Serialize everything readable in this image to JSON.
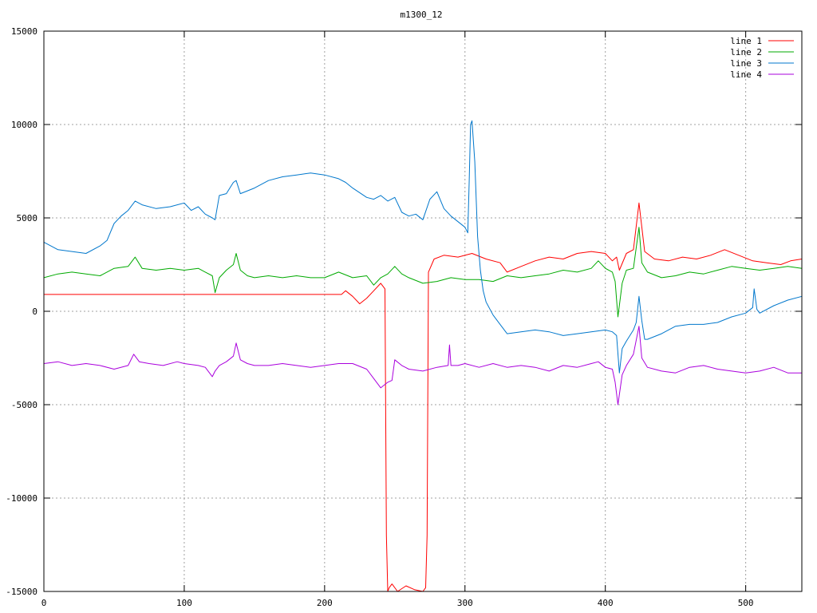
{
  "chart_data": {
    "type": "line",
    "title": "m1300_12",
    "xlim": [
      0,
      540
    ],
    "ylim": [
      -15000,
      15000
    ],
    "x_ticks": [
      0,
      100,
      200,
      300,
      400,
      500
    ],
    "y_ticks": [
      -15000,
      -10000,
      -5000,
      0,
      5000,
      10000,
      15000
    ],
    "grid": true,
    "legend_position": "top-right",
    "series": [
      {
        "name": "line 1",
        "color": "#ff0000",
        "x": [
          0,
          50,
          100,
          150,
          200,
          212,
          215,
          220,
          225,
          230,
          235,
          240,
          243,
          244,
          245,
          246,
          248,
          252,
          258,
          264,
          270,
          272,
          273,
          274,
          278,
          285,
          295,
          305,
          315,
          325,
          330,
          340,
          350,
          360,
          370,
          380,
          390,
          400,
          405,
          408,
          410,
          415,
          420,
          424,
          428,
          435,
          445,
          455,
          465,
          475,
          485,
          495,
          505,
          515,
          525,
          532,
          540
        ],
        "y": [
          900,
          900,
          900,
          900,
          900,
          900,
          1100,
          800,
          400,
          700,
          1100,
          1500,
          1200,
          -12000,
          -15000,
          -14800,
          -14600,
          -15000,
          -14700,
          -14900,
          -15000,
          -14800,
          -12000,
          2100,
          2800,
          3000,
          2900,
          3100,
          2800,
          2600,
          2100,
          2400,
          2700,
          2900,
          2800,
          3100,
          3200,
          3100,
          2700,
          2900,
          2200,
          3100,
          3300,
          5800,
          3200,
          2800,
          2700,
          2900,
          2800,
          3000,
          3300,
          3000,
          2700,
          2600,
          2500,
          2700,
          2800
        ]
      },
      {
        "name": "line 2",
        "color": "#00aa00",
        "x": [
          0,
          10,
          20,
          30,
          40,
          50,
          60,
          65,
          70,
          80,
          90,
          100,
          110,
          115,
          120,
          122,
          125,
          130,
          135,
          137,
          140,
          145,
          150,
          160,
          170,
          180,
          190,
          200,
          210,
          220,
          230,
          235,
          240,
          245,
          250,
          255,
          260,
          270,
          280,
          290,
          300,
          310,
          320,
          330,
          340,
          350,
          360,
          370,
          380,
          390,
          395,
          400,
          405,
          407,
          409,
          412,
          415,
          420,
          424,
          426,
          430,
          440,
          450,
          460,
          470,
          480,
          490,
          500,
          510,
          520,
          530,
          540
        ],
        "y": [
          1800,
          2000,
          2100,
          2000,
          1900,
          2300,
          2400,
          2900,
          2300,
          2200,
          2300,
          2200,
          2300,
          2100,
          1900,
          1000,
          1800,
          2200,
          2500,
          3100,
          2200,
          1900,
          1800,
          1900,
          1800,
          1900,
          1800,
          1800,
          2100,
          1800,
          1900,
          1400,
          1800,
          2000,
          2400,
          2000,
          1800,
          1500,
          1600,
          1800,
          1700,
          1700,
          1600,
          1900,
          1800,
          1900,
          2000,
          2200,
          2100,
          2300,
          2700,
          2300,
          2100,
          1600,
          -300,
          1500,
          2200,
          2300,
          4500,
          2600,
          2100,
          1800,
          1900,
          2100,
          2000,
          2200,
          2400,
          2300,
          2200,
          2300,
          2400,
          2300
        ]
      },
      {
        "name": "line 3",
        "color": "#0077cc",
        "x": [
          0,
          10,
          20,
          30,
          40,
          45,
          50,
          55,
          60,
          65,
          70,
          80,
          90,
          100,
          105,
          110,
          115,
          120,
          122,
          125,
          130,
          135,
          137,
          140,
          150,
          160,
          170,
          180,
          190,
          200,
          210,
          215,
          220,
          230,
          235,
          240,
          245,
          250,
          255,
          260,
          265,
          270,
          275,
          280,
          285,
          290,
          295,
          300,
          302,
          303,
          304,
          305,
          307,
          309,
          311,
          313,
          315,
          320,
          325,
          330,
          340,
          350,
          360,
          370,
          380,
          390,
          400,
          405,
          408,
          410,
          412,
          415,
          420,
          422,
          424,
          426,
          428,
          430,
          440,
          450,
          460,
          470,
          480,
          490,
          500,
          505,
          506,
          508,
          510,
          520,
          530,
          540
        ],
        "y": [
          3700,
          3300,
          3200,
          3100,
          3500,
          3800,
          4700,
          5100,
          5400,
          5900,
          5700,
          5500,
          5600,
          5800,
          5400,
          5600,
          5200,
          5000,
          4900,
          6200,
          6300,
          6900,
          7000,
          6300,
          6600,
          7000,
          7200,
          7300,
          7400,
          7300,
          7100,
          6900,
          6600,
          6100,
          6000,
          6200,
          5900,
          6100,
          5300,
          5100,
          5200,
          4900,
          6000,
          6400,
          5500,
          5100,
          4800,
          4500,
          4200,
          7000,
          10000,
          10200,
          8000,
          4000,
          2200,
          1100,
          500,
          -200,
          -700,
          -1200,
          -1100,
          -1000,
          -1100,
          -1300,
          -1200,
          -1100,
          -1000,
          -1100,
          -1300,
          -3300,
          -2000,
          -1600,
          -1000,
          -600,
          800,
          -500,
          -1500,
          -1500,
          -1200,
          -800,
          -700,
          -700,
          -600,
          -300,
          -100,
          200,
          1200,
          100,
          -100,
          300,
          600,
          800
        ]
      },
      {
        "name": "line 4",
        "color": "#aa00dd",
        "x": [
          0,
          10,
          20,
          30,
          40,
          50,
          60,
          64,
          68,
          75,
          85,
          95,
          100,
          110,
          115,
          120,
          122,
          125,
          130,
          135,
          137,
          140,
          145,
          150,
          160,
          170,
          180,
          190,
          200,
          210,
          220,
          230,
          235,
          240,
          245,
          248,
          250,
          255,
          260,
          270,
          280,
          288,
          289,
          290,
          295,
          300,
          310,
          320,
          330,
          340,
          350,
          360,
          370,
          380,
          390,
          395,
          400,
          405,
          407,
          409,
          412,
          415,
          420,
          424,
          426,
          430,
          440,
          450,
          460,
          470,
          480,
          490,
          500,
          510,
          520,
          530,
          540
        ],
        "y": [
          -2800,
          -2700,
          -2900,
          -2800,
          -2900,
          -3100,
          -2900,
          -2300,
          -2700,
          -2800,
          -2900,
          -2700,
          -2800,
          -2900,
          -3000,
          -3500,
          -3200,
          -2900,
          -2700,
          -2400,
          -1700,
          -2600,
          -2800,
          -2900,
          -2900,
          -2800,
          -2900,
          -3000,
          -2900,
          -2800,
          -2800,
          -3100,
          -3600,
          -4100,
          -3800,
          -3700,
          -2600,
          -2900,
          -3100,
          -3200,
          -3000,
          -2900,
          -1800,
          -2900,
          -2900,
          -2800,
          -3000,
          -2800,
          -3000,
          -2900,
          -3000,
          -3200,
          -2900,
          -3000,
          -2800,
          -2700,
          -3000,
          -3100,
          -3800,
          -5000,
          -3400,
          -2900,
          -2300,
          -800,
          -2500,
          -3000,
          -3200,
          -3300,
          -3000,
          -2900,
          -3100,
          -3200,
          -3300,
          -3200,
          -3000,
          -3300,
          -3300
        ]
      }
    ]
  }
}
